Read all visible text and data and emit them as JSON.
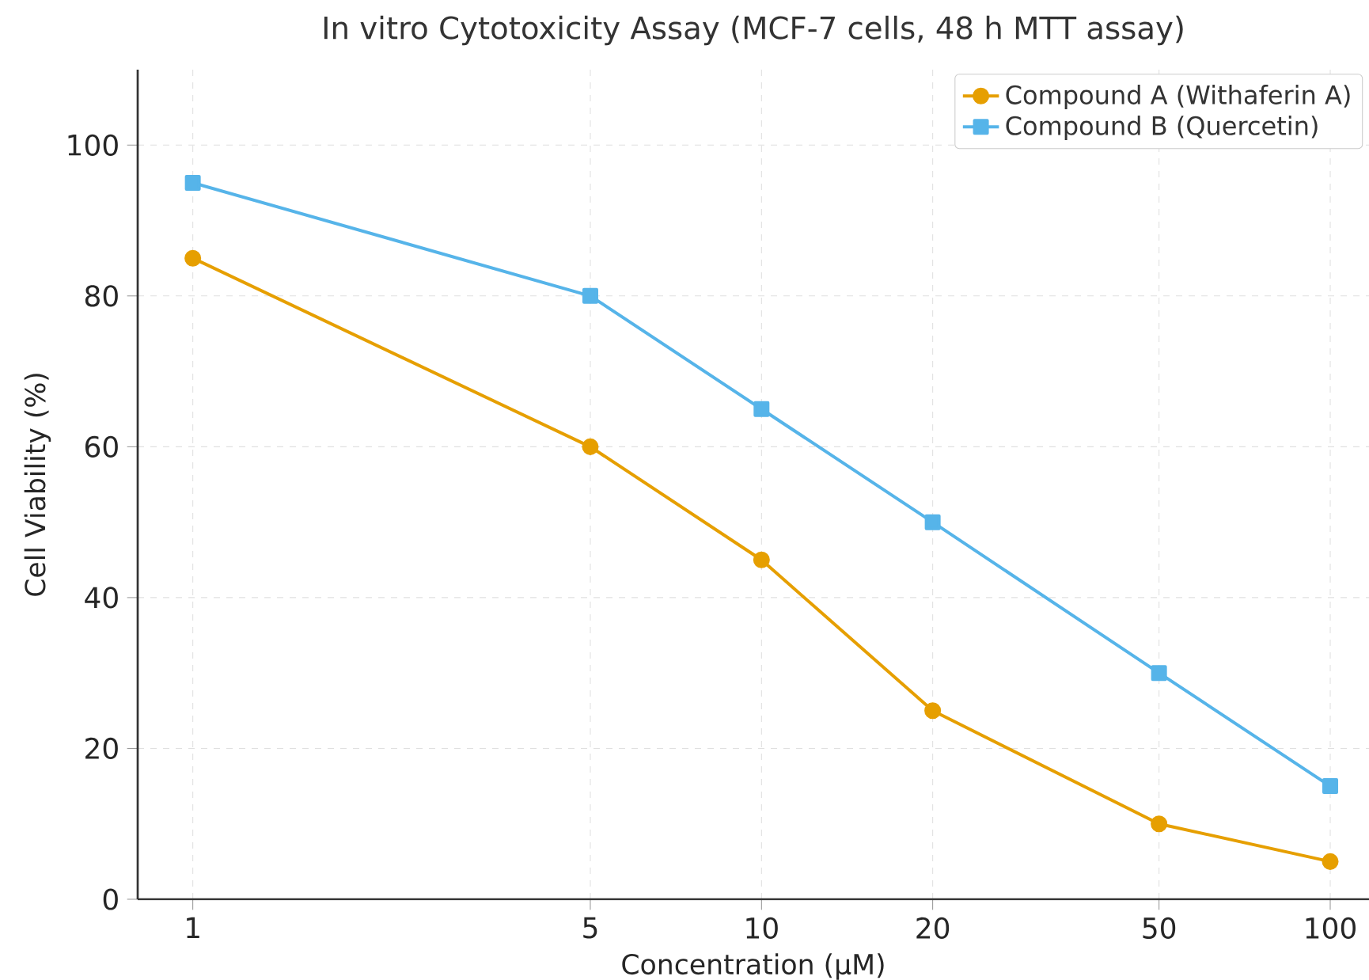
{
  "chart_data": {
    "type": "line",
    "title": "In vitro Cytotoxicity Assay (MCF-7 cells, 48 h MTT assay)",
    "xlabel": "Concentration (µM)",
    "ylabel": "Cell Viability (%)",
    "x": [
      1,
      5,
      10,
      20,
      50,
      100
    ],
    "series": [
      {
        "name": "Compound A (Withaferin A)",
        "color": "#e69f00",
        "marker": "circle",
        "values": [
          85,
          60,
          45,
          25,
          10,
          5
        ]
      },
      {
        "name": "Compound B (Quercetin)",
        "color": "#56b4e9",
        "marker": "square",
        "values": [
          95,
          80,
          65,
          50,
          30,
          15
        ]
      }
    ],
    "log": "x",
    "xlim": [
      0.8,
      117
    ],
    "ylim": [
      0,
      110
    ],
    "xticks": [
      1,
      5,
      10,
      20,
      50,
      100
    ],
    "yticks": [
      0,
      20,
      40,
      60,
      80,
      100
    ],
    "grid": true,
    "legend": "top right",
    "line_style": "solid"
  }
}
